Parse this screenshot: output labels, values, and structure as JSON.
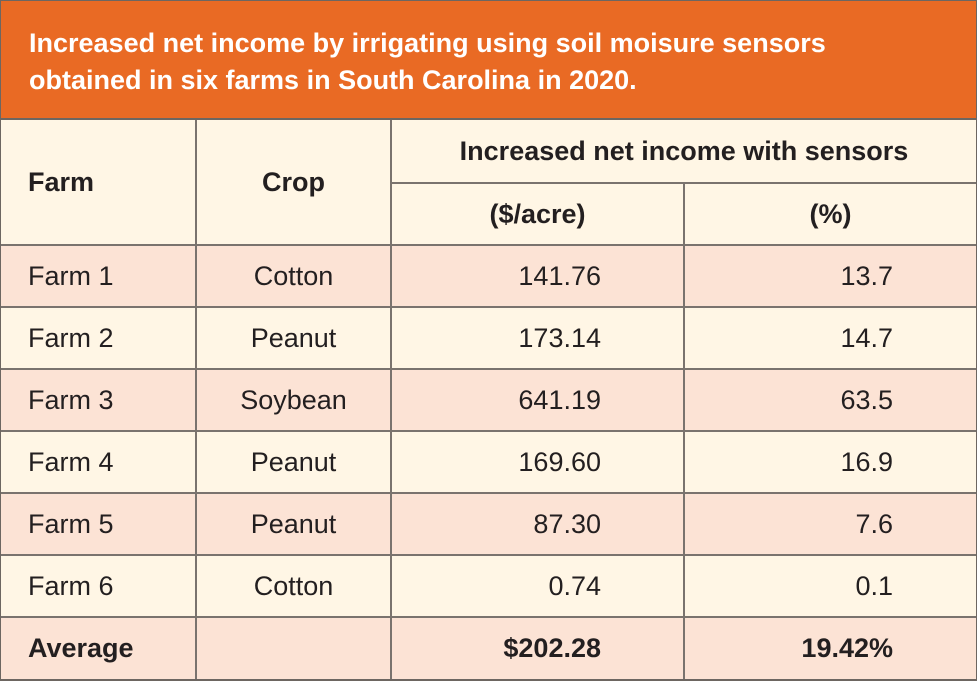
{
  "title": {
    "line1": "Increased net income by irrigating using soil moisure sensors",
    "line2": "obtained in six farms in South Carolina in 2020."
  },
  "headers": {
    "farm": "Farm",
    "crop": "Crop",
    "group": "Increased net income with sensors",
    "dollars": "($/acre)",
    "percent": "(%)"
  },
  "rows": [
    {
      "farm": "Farm 1",
      "crop": "Cotton",
      "dollars": "141.76",
      "percent": "13.7"
    },
    {
      "farm": "Farm 2",
      "crop": "Peanut",
      "dollars": "173.14",
      "percent": "14.7"
    },
    {
      "farm": "Farm 3",
      "crop": "Soybean",
      "dollars": "641.19",
      "percent": "63.5"
    },
    {
      "farm": "Farm 4",
      "crop": "Peanut",
      "dollars": "169.60",
      "percent": "16.9"
    },
    {
      "farm": "Farm 5",
      "crop": "Peanut",
      "dollars": "87.30",
      "percent": "7.6"
    },
    {
      "farm": "Farm 6",
      "crop": "Cotton",
      "dollars": "0.74",
      "percent": "0.1"
    }
  ],
  "average": {
    "label": "Average",
    "crop": "",
    "dollars": "$202.28",
    "percent": "19.42%"
  },
  "colors": {
    "title_bg": "#e96a24",
    "header_bg": "#fff6e5",
    "pink_row": "#fce3d5",
    "cream_row": "#fff6e5"
  },
  "chart_data": {
    "type": "table",
    "title": "Increased net income by irrigating using soil moisure sensors obtained in six farms in South Carolina in 2020.",
    "columns": [
      "Farm",
      "Crop",
      "Increased net income with sensors ($/acre)",
      "Increased net income with sensors (%)"
    ],
    "data": [
      [
        "Farm 1",
        "Cotton",
        141.76,
        13.7
      ],
      [
        "Farm 2",
        "Peanut",
        173.14,
        14.7
      ],
      [
        "Farm 3",
        "Soybean",
        641.19,
        63.5
      ],
      [
        "Farm 4",
        "Peanut",
        169.6,
        16.9
      ],
      [
        "Farm 5",
        "Peanut",
        87.3,
        7.6
      ],
      [
        "Farm 6",
        "Cotton",
        0.74,
        0.1
      ],
      [
        "Average",
        "",
        202.28,
        19.42
      ]
    ]
  }
}
